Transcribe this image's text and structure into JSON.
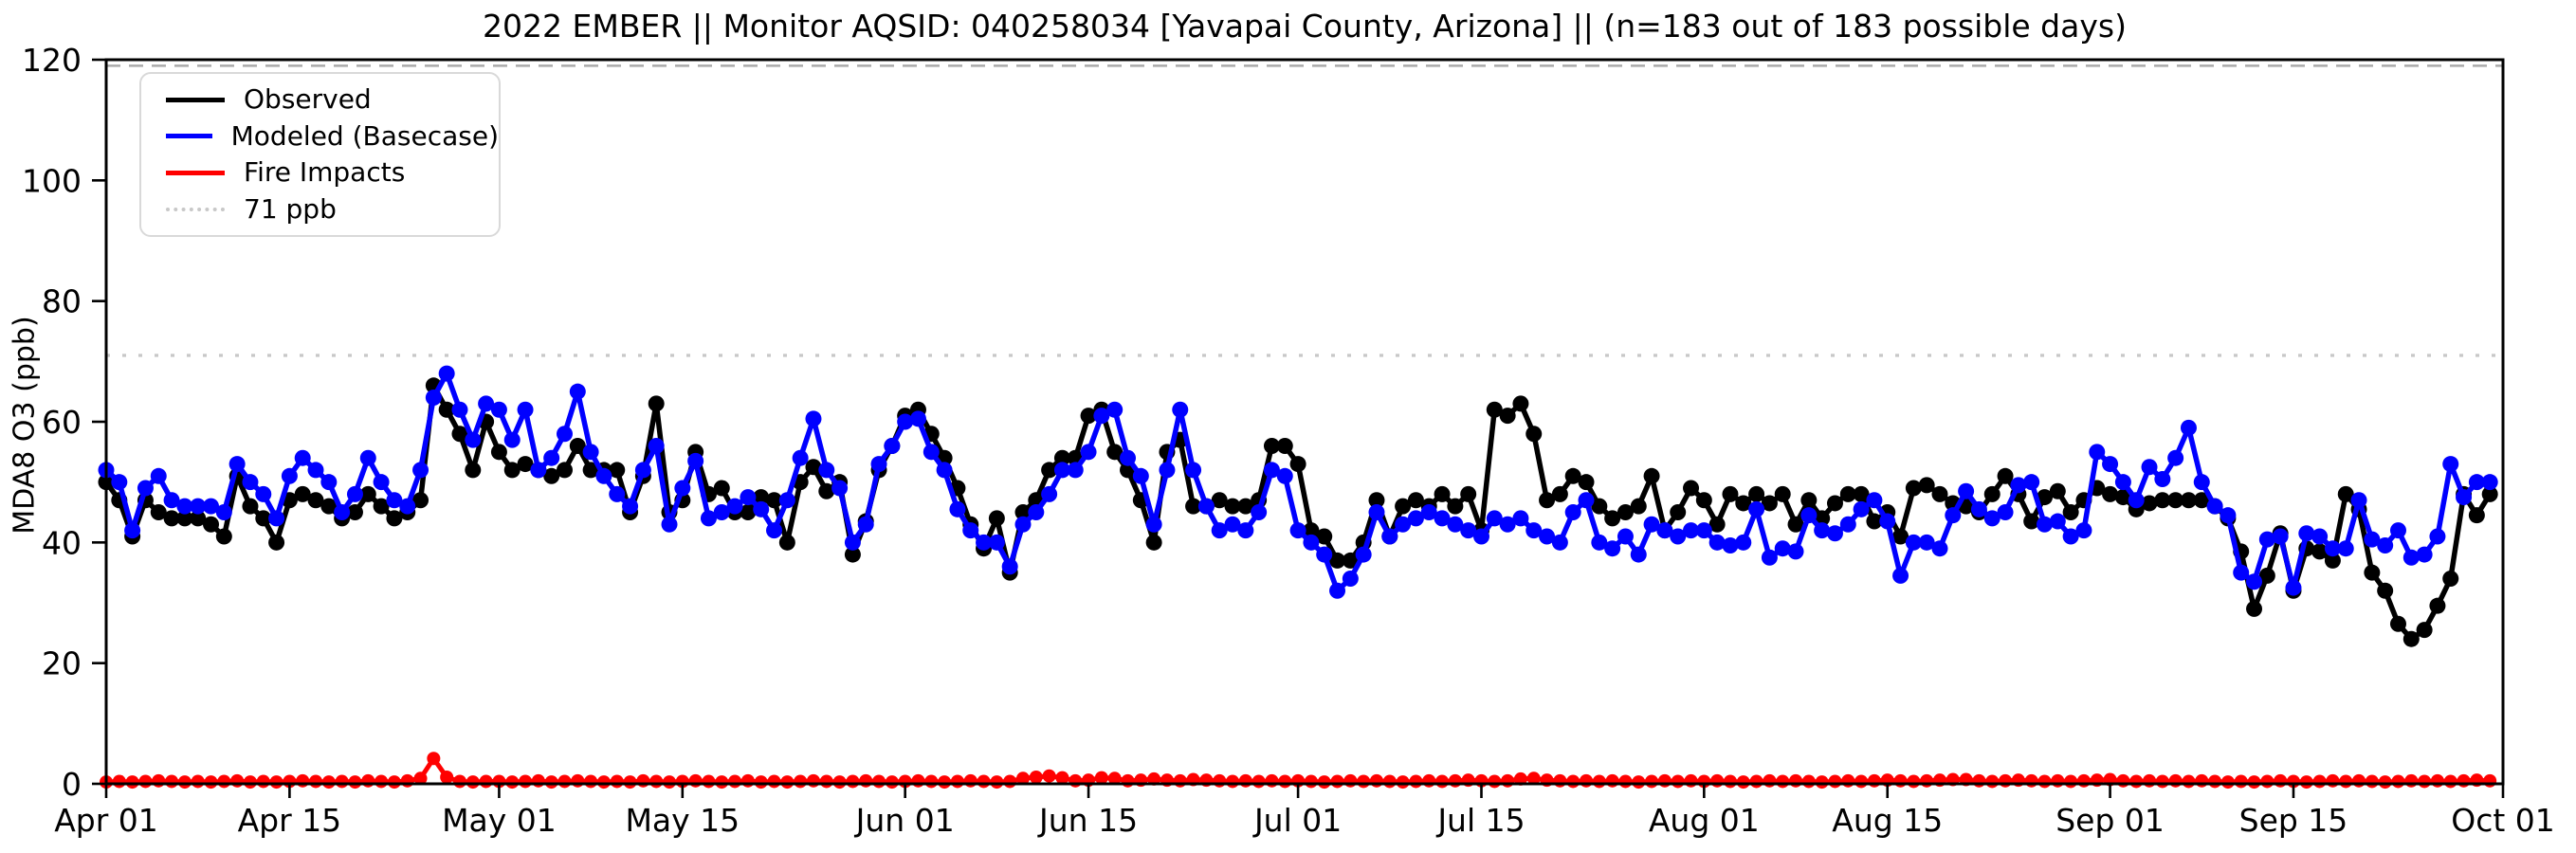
{
  "window": {
    "background": "#ffffff"
  },
  "chart_data": {
    "type": "line",
    "title": "2022 EMBER || Monitor AQSID: 040258034 [Yavapai County, Arizona] || (n=183 out of 183 possible days)",
    "ylabel": "MDA8 O3 (ppb)",
    "ylim": [
      0,
      120
    ],
    "yticks": [
      0,
      20,
      40,
      60,
      80,
      100,
      120
    ],
    "n_days": 183,
    "x_range_days": 183,
    "xticks": [
      {
        "day": 0,
        "label": "Apr 01"
      },
      {
        "day": 14,
        "label": "Apr 15"
      },
      {
        "day": 30,
        "label": "May 01"
      },
      {
        "day": 44,
        "label": "May 15"
      },
      {
        "day": 61,
        "label": "Jun 01"
      },
      {
        "day": 75,
        "label": "Jun 15"
      },
      {
        "day": 91,
        "label": "Jul 01"
      },
      {
        "day": 105,
        "label": "Jul 15"
      },
      {
        "day": 122,
        "label": "Aug 01"
      },
      {
        "day": 136,
        "label": "Aug 15"
      },
      {
        "day": 153,
        "label": "Sep 01"
      },
      {
        "day": 167,
        "label": "Sep 15"
      },
      {
        "day": 183,
        "label": "Oct 01"
      }
    ],
    "legend_entries": [
      {
        "label": "Observed",
        "color": "#000000",
        "line_style": "solid"
      },
      {
        "label": "Modeled (Basecase)",
        "color": "#0000ff",
        "line_style": "solid"
      },
      {
        "label": "Fire Impacts",
        "color": "#ff0000",
        "line_style": "solid"
      },
      {
        "label": "71 ppb",
        "color": "#c8c8c8",
        "line_style": "dotted"
      }
    ],
    "reference_lines": [
      {
        "value": 71,
        "style": "dotted",
        "color": "#c8c8c8"
      },
      {
        "value": 119,
        "style": "dashed",
        "color": "#aaaaaa"
      }
    ],
    "legend_position": "upper-left",
    "grid": false,
    "series": [
      {
        "name": "Observed",
        "color": "#000000",
        "line_width": 5.5,
        "marker_radius": 8.5,
        "values": [
          50,
          47,
          41,
          47,
          45,
          44,
          44,
          44,
          43,
          41,
          51,
          46,
          44,
          40,
          47,
          48,
          47,
          46,
          44,
          45,
          48,
          46,
          44,
          45,
          47,
          66,
          62,
          58,
          52,
          60,
          55,
          52,
          53,
          52,
          51,
          52,
          56,
          52,
          52,
          52,
          45,
          51,
          63,
          45,
          47,
          55,
          48,
          49,
          45,
          45,
          47.5,
          47,
          40,
          50,
          52.5,
          48.5,
          50,
          38,
          43.5,
          52,
          56,
          61,
          62,
          58,
          54,
          49,
          43,
          39,
          44,
          35,
          45,
          47,
          52,
          54,
          54,
          61,
          62,
          55,
          52,
          47,
          40,
          55,
          57,
          46,
          46,
          47,
          46,
          46,
          47,
          56,
          56,
          53,
          42,
          41,
          37,
          37,
          40,
          47,
          41,
          46,
          47,
          46,
          48,
          46,
          48,
          42,
          62,
          61,
          63,
          58,
          47,
          48,
          51,
          50,
          46,
          44,
          45,
          46,
          51,
          42,
          45,
          49,
          47,
          43,
          48,
          46.5,
          48,
          46.5,
          48,
          43,
          47,
          44,
          46.5,
          48,
          48,
          43.5,
          45,
          41,
          49,
          49.5,
          48,
          46.5,
          46,
          45,
          48,
          51,
          48,
          43.5,
          47.5,
          48.5,
          45,
          47,
          49,
          48,
          47.5,
          45.5,
          46.5,
          47,
          47,
          47,
          47,
          46,
          44,
          38.5,
          29,
          34.5,
          41.5,
          32,
          39,
          38.5,
          37,
          48,
          45.5,
          35,
          32,
          26.5,
          24,
          25.5,
          29.5,
          34,
          48,
          44.5,
          48
        ]
      },
      {
        "name": "Modeled (Basecase)",
        "color": "#0000ff",
        "line_width": 5.5,
        "marker_radius": 8.5,
        "values": [
          52,
          50,
          42,
          49,
          51,
          47,
          46,
          46,
          46,
          45,
          53,
          50,
          48,
          44,
          51,
          54,
          52,
          50,
          45,
          48,
          54,
          50,
          47,
          46,
          52,
          64,
          68,
          62,
          57,
          63,
          62,
          57,
          62,
          52,
          54,
          58,
          65,
          55,
          51,
          48,
          46,
          52,
          56,
          43,
          49,
          53.5,
          44,
          45,
          46,
          47.5,
          45.5,
          42,
          47,
          54,
          60.5,
          52,
          49,
          40,
          43,
          53,
          56,
          60,
          60.5,
          55,
          52,
          45.5,
          42,
          40,
          40,
          36,
          43,
          45,
          48,
          52,
          52,
          55,
          61,
          62,
          54,
          51,
          43,
          52,
          62,
          52,
          46,
          42,
          43,
          42,
          45,
          52,
          51,
          42,
          40,
          38,
          32,
          34,
          38,
          45,
          41,
          43,
          44,
          45,
          44,
          43,
          42,
          41,
          44,
          43,
          44,
          42,
          41,
          40,
          45,
          47,
          40,
          39,
          41,
          38,
          43,
          42,
          41,
          42,
          42,
          40,
          39.5,
          40,
          45.5,
          37.5,
          39,
          38.5,
          44.5,
          42,
          41.5,
          43,
          45.5,
          47,
          43.5,
          34.5,
          40,
          40,
          39,
          44.5,
          48.5,
          45.5,
          44,
          45,
          49.5,
          50,
          43,
          43.5,
          41,
          42,
          55,
          53,
          50,
          47,
          52.5,
          50.5,
          54,
          59,
          50,
          46,
          44.5,
          35,
          33.5,
          40.5,
          41,
          32.5,
          41.5,
          41,
          39,
          39,
          47,
          40.5,
          39.5,
          42,
          37.5,
          38,
          41,
          53,
          47.5,
          50,
          50
        ]
      },
      {
        "name": "Fire Impacts",
        "color": "#ff0000",
        "line_width": 5,
        "marker_radius": 7,
        "values": [
          0.3,
          0.4,
          0.3,
          0.4,
          0.5,
          0.4,
          0.3,
          0.4,
          0.3,
          0.4,
          0.5,
          0.3,
          0.4,
          0.3,
          0.4,
          0.5,
          0.4,
          0.3,
          0.4,
          0.3,
          0.5,
          0.4,
          0.3,
          0.5,
          0.9,
          4.2,
          1.1,
          0.4,
          0.3,
          0.4,
          0.4,
          0.3,
          0.4,
          0.5,
          0.3,
          0.4,
          0.5,
          0.4,
          0.3,
          0.4,
          0.3,
          0.5,
          0.4,
          0.3,
          0.4,
          0.5,
          0.4,
          0.3,
          0.4,
          0.5,
          0.3,
          0.4,
          0.3,
          0.4,
          0.5,
          0.4,
          0.3,
          0.4,
          0.5,
          0.4,
          0.3,
          0.4,
          0.5,
          0.4,
          0.3,
          0.4,
          0.5,
          0.4,
          0.3,
          0.4,
          0.9,
          1.1,
          1.3,
          1.0,
          0.5,
          0.6,
          1.0,
          0.9,
          0.5,
          0.6,
          0.8,
          0.6,
          0.5,
          0.7,
          0.6,
          0.5,
          0.4,
          0.5,
          0.4,
          0.5,
          0.4,
          0.5,
          0.4,
          0.3,
          0.4,
          0.5,
          0.4,
          0.5,
          0.4,
          0.3,
          0.4,
          0.5,
          0.4,
          0.5,
          0.6,
          0.5,
          0.4,
          0.5,
          0.8,
          0.9,
          0.6,
          0.5,
          0.4,
          0.5,
          0.4,
          0.5,
          0.4,
          0.3,
          0.4,
          0.5,
          0.4,
          0.5,
          0.4,
          0.5,
          0.4,
          0.3,
          0.4,
          0.5,
          0.4,
          0.5,
          0.4,
          0.3,
          0.4,
          0.5,
          0.4,
          0.5,
          0.6,
          0.5,
          0.4,
          0.5,
          0.6,
          0.7,
          0.7,
          0.5,
          0.4,
          0.5,
          0.6,
          0.5,
          0.4,
          0.5,
          0.4,
          0.5,
          0.6,
          0.7,
          0.5,
          0.4,
          0.5,
          0.4,
          0.5,
          0.4,
          0.5,
          0.4,
          0.3,
          0.4,
          0.3,
          0.4,
          0.5,
          0.4,
          0.3,
          0.4,
          0.5,
          0.4,
          0.5,
          0.4,
          0.3,
          0.4,
          0.5,
          0.4,
          0.5,
          0.4,
          0.5,
          0.6,
          0.5
        ]
      }
    ]
  }
}
